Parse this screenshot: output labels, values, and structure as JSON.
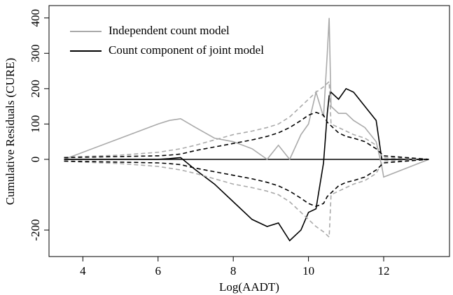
{
  "chart_data": {
    "type": "line",
    "xlabel": "Log(AADT)",
    "ylabel": "Cumulative Residuals (CURE)",
    "x": [
      3.5,
      4,
      5,
      6,
      6.3,
      6.6,
      7,
      7.5,
      8,
      8.5,
      8.9,
      9.2,
      9.5,
      9.8,
      10,
      10.2,
      10.4,
      10.5,
      10.55,
      10.6,
      10.8,
      11,
      11.2,
      11.5,
      11.8,
      11.95,
      12,
      13.2
    ],
    "series": [
      {
        "name": "Independent count model",
        "color": "#aaaaaa",
        "dashed": false,
        "values": [
          0,
          20,
          60,
          100,
          110,
          115,
          90,
          60,
          50,
          30,
          0,
          40,
          0,
          70,
          100,
          190,
          120,
          300,
          400,
          150,
          130,
          130,
          110,
          90,
          50,
          -20,
          -50,
          0
        ]
      },
      {
        "name": "Count component of joint model",
        "color": "#000000",
        "dashed": false,
        "values": [
          0,
          0,
          0,
          0,
          2,
          5,
          -30,
          -70,
          -120,
          -170,
          -190,
          -180,
          -230,
          -200,
          -150,
          -140,
          -10,
          130,
          180,
          190,
          170,
          200,
          190,
          150,
          110,
          0,
          0,
          0
        ]
      },
      {
        "color": "#aaaaaa",
        "dashed": true,
        "values": [
          5,
          8,
          12,
          20,
          25,
          30,
          40,
          55,
          70,
          80,
          90,
          100,
          120,
          150,
          170,
          190,
          205,
          215,
          220,
          100,
          90,
          80,
          70,
          60,
          40,
          10,
          5,
          0
        ]
      },
      {
        "color": "#aaaaaa",
        "dashed": true,
        "values": [
          -5,
          -8,
          -12,
          -20,
          -25,
          -30,
          -40,
          -55,
          -70,
          -80,
          -90,
          -100,
          -120,
          -150,
          -170,
          -190,
          -205,
          -215,
          -220,
          -100,
          -90,
          -80,
          -70,
          -60,
          -40,
          -10,
          -5,
          0
        ]
      },
      {
        "color": "#000000",
        "dashed": true,
        "values": [
          5,
          6,
          8,
          10,
          12,
          15,
          25,
          35,
          45,
          55,
          65,
          75,
          90,
          110,
          125,
          133,
          125,
          105,
          100,
          95,
          75,
          65,
          60,
          50,
          30,
          15,
          10,
          0
        ]
      },
      {
        "color": "#000000",
        "dashed": true,
        "values": [
          -5,
          -6,
          -8,
          -10,
          -12,
          -15,
          -25,
          -35,
          -45,
          -55,
          -65,
          -75,
          -90,
          -110,
          -125,
          -133,
          -125,
          -105,
          -100,
          -95,
          -75,
          -65,
          -60,
          -50,
          -30,
          -15,
          -10,
          0
        ]
      }
    ],
    "xlim": [
      3.1,
      13.75
    ],
    "xticks": [
      4,
      6,
      8,
      10,
      12
    ],
    "ylim": [
      -275,
      435
    ],
    "yticks": [
      -200,
      0,
      100,
      200,
      300,
      400
    ],
    "legend": "top-left"
  }
}
